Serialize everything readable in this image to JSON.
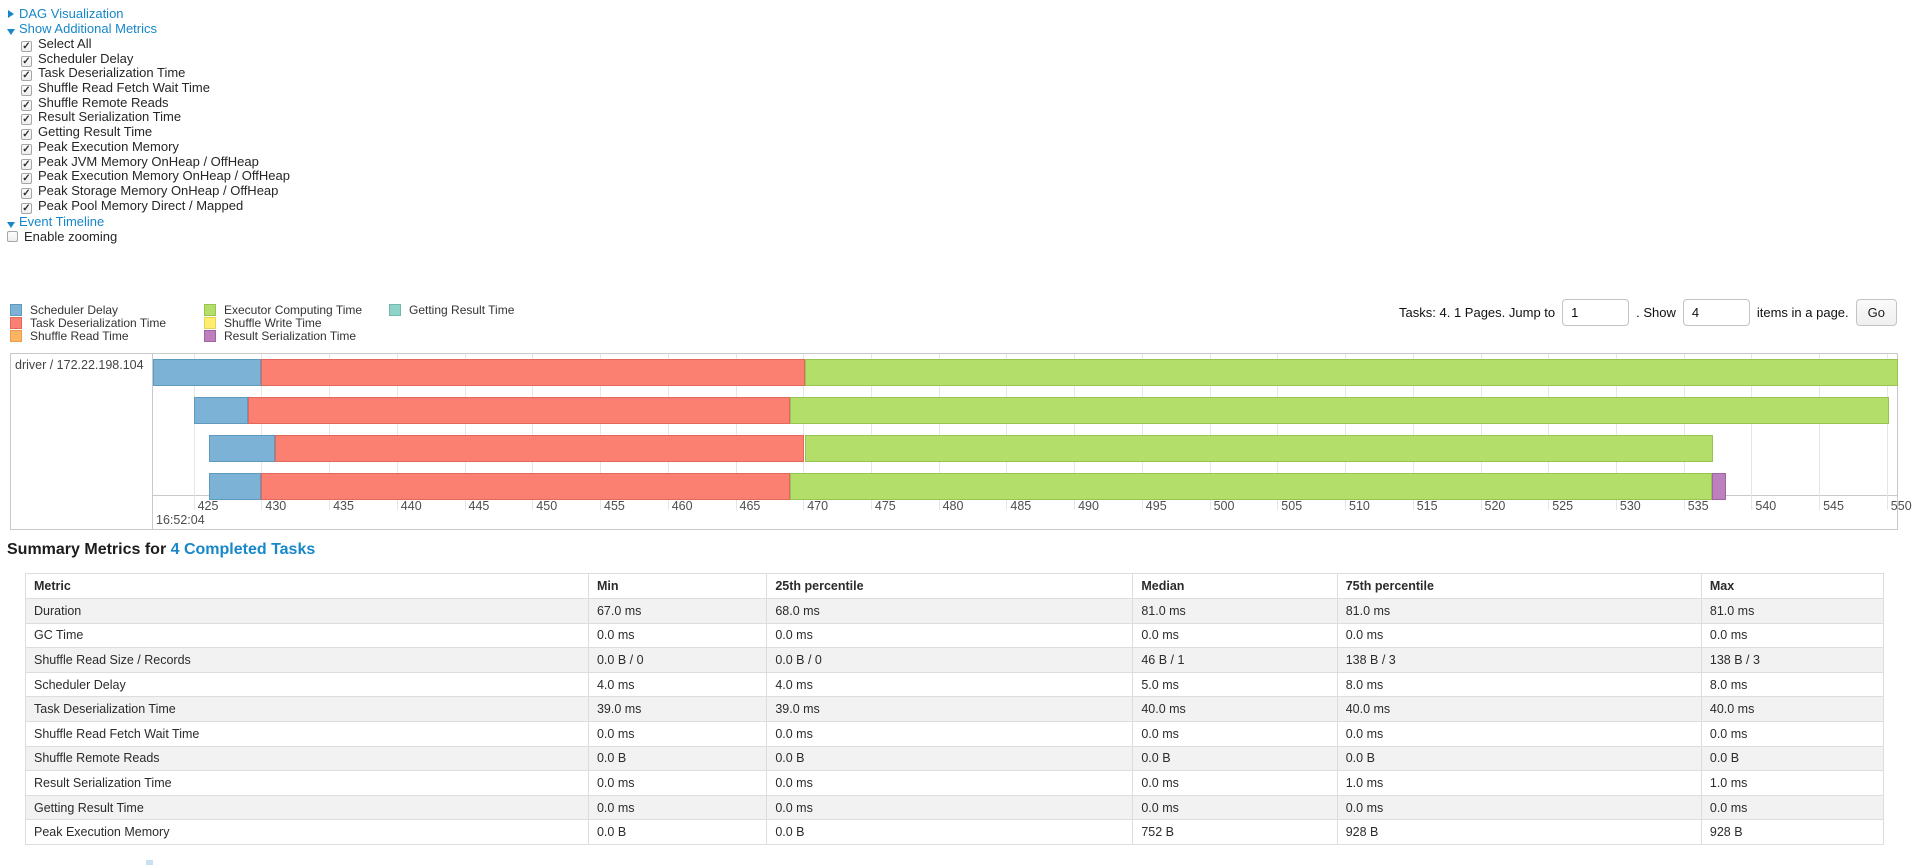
{
  "controls": {
    "dag_label": "DAG Visualization",
    "metrics_label": "Show Additional Metrics",
    "metric_checkboxes": [
      {
        "label": "Select All",
        "checked": true
      },
      {
        "label": "Scheduler Delay",
        "checked": true
      },
      {
        "label": "Task Deserialization Time",
        "checked": true
      },
      {
        "label": "Shuffle Read Fetch Wait Time",
        "checked": true
      },
      {
        "label": "Shuffle Remote Reads",
        "checked": true
      },
      {
        "label": "Result Serialization Time",
        "checked": true
      },
      {
        "label": "Getting Result Time",
        "checked": true
      },
      {
        "label": "Peak Execution Memory",
        "checked": true
      },
      {
        "label": "Peak JVM Memory OnHeap / OffHeap",
        "checked": true
      },
      {
        "label": "Peak Execution Memory OnHeap / OffHeap",
        "checked": true
      },
      {
        "label": "Peak Storage Memory OnHeap / OffHeap",
        "checked": true
      },
      {
        "label": "Peak Pool Memory Direct / Mapped",
        "checked": true
      }
    ],
    "timeline_label": "Event Timeline",
    "enable_zooming": {
      "label": "Enable zooming",
      "checked": false
    }
  },
  "pagination": {
    "prefix": "Tasks: 4. 1 Pages. Jump to",
    "jump_value": "1",
    "middle": ". Show",
    "show_value": "4",
    "suffix": "items in a page.",
    "go_label": "Go"
  },
  "chart_data": {
    "type": "timeline",
    "group_label": "driver / 172.22.198.104",
    "time_domain_ms": [
      422.0,
      550.75
    ],
    "axis_ticks_ms": [
      425,
      430,
      435,
      440,
      445,
      450,
      455,
      460,
      465,
      470,
      475,
      480,
      485,
      490,
      495,
      500,
      505,
      510,
      515,
      520,
      525,
      530,
      535,
      540,
      545,
      550
    ],
    "axis_major_label": "16:52:04",
    "series": [
      {
        "key": "scheduler_delay",
        "label": "Scheduler Delay",
        "fill": "#7CB2D6",
        "border": "#5E99C0"
      },
      {
        "key": "task_deserialization",
        "label": "Task Deserialization Time",
        "fill": "#FB8072",
        "border": "#E2685B"
      },
      {
        "key": "shuffle_read",
        "label": "Shuffle Read Time",
        "fill": "#FDB462",
        "border": "#E89C48"
      },
      {
        "key": "executor_computing",
        "label": "Executor Computing Time",
        "fill": "#B3DE69",
        "border": "#99C351"
      },
      {
        "key": "shuffle_write",
        "label": "Shuffle Write Time",
        "fill": "#FFED6F",
        "border": "#E5D257"
      },
      {
        "key": "result_serialization",
        "label": "Result Serialization Time",
        "fill": "#BC80BD",
        "border": "#A263A4"
      },
      {
        "key": "getting_result",
        "label": "Getting Result Time",
        "fill": "#8DD3C7",
        "border": "#72B8AB"
      }
    ],
    "legend_columns": [
      [
        "scheduler_delay",
        "task_deserialization",
        "shuffle_read"
      ],
      [
        "executor_computing",
        "shuffle_write",
        "result_serialization"
      ],
      [
        "getting_result"
      ]
    ],
    "tasks": [
      {
        "segments": [
          {
            "series": "scheduler_delay",
            "start": 422.0,
            "end": 430.0
          },
          {
            "series": "task_deserialization",
            "start": 430.0,
            "end": 470.1
          },
          {
            "series": "executor_computing",
            "start": 470.1,
            "end": 550.8
          }
        ]
      },
      {
        "segments": [
          {
            "series": "scheduler_delay",
            "start": 425.0,
            "end": 429.0
          },
          {
            "series": "task_deserialization",
            "start": 429.0,
            "end": 469.0
          },
          {
            "series": "executor_computing",
            "start": 469.0,
            "end": 550.2
          }
        ]
      },
      {
        "segments": [
          {
            "series": "scheduler_delay",
            "start": 426.1,
            "end": 431.0
          },
          {
            "series": "task_deserialization",
            "start": 431.0,
            "end": 470.1
          },
          {
            "series": "executor_computing",
            "start": 470.1,
            "end": 537.2
          }
        ]
      },
      {
        "segments": [
          {
            "series": "scheduler_delay",
            "start": 426.1,
            "end": 430.0
          },
          {
            "series": "task_deserialization",
            "start": 430.0,
            "end": 469.0
          },
          {
            "series": "executor_computing",
            "start": 469.0,
            "end": 537.1
          },
          {
            "series": "result_serialization",
            "start": 537.1,
            "end": 538.1
          }
        ]
      }
    ]
  },
  "summary": {
    "heading_prefix": "Summary Metrics for ",
    "heading_link": "4 Completed Tasks",
    "table": {
      "headers": [
        "Metric",
        "Min",
        "25th percentile",
        "Median",
        "75th percentile",
        "Max"
      ],
      "rows": [
        {
          "metric": "Duration",
          "values": [
            "67.0 ms",
            "68.0 ms",
            "81.0 ms",
            "81.0 ms",
            "81.0 ms"
          ]
        },
        {
          "metric": "GC Time",
          "values": [
            "0.0 ms",
            "0.0 ms",
            "0.0 ms",
            "0.0 ms",
            "0.0 ms"
          ]
        },
        {
          "metric": "Shuffle Read Size / Records",
          "values": [
            "0.0 B / 0",
            "0.0 B / 0",
            "46 B / 1",
            "138 B / 3",
            "138 B / 3"
          ]
        },
        {
          "metric": "Scheduler Delay",
          "values": [
            "4.0 ms",
            "4.0 ms",
            "5.0 ms",
            "8.0 ms",
            "8.0 ms"
          ]
        },
        {
          "metric": "Task Deserialization Time",
          "values": [
            "39.0 ms",
            "39.0 ms",
            "40.0 ms",
            "40.0 ms",
            "40.0 ms"
          ]
        },
        {
          "metric": "Shuffle Read Fetch Wait Time",
          "values": [
            "0.0 ms",
            "0.0 ms",
            "0.0 ms",
            "0.0 ms",
            "0.0 ms"
          ]
        },
        {
          "metric": "Shuffle Remote Reads",
          "values": [
            "0.0 B",
            "0.0 B",
            "0.0 B",
            "0.0 B",
            "0.0 B"
          ]
        },
        {
          "metric": "Result Serialization Time",
          "values": [
            "0.0 ms",
            "0.0 ms",
            "0.0 ms",
            "1.0 ms",
            "1.0 ms"
          ]
        },
        {
          "metric": "Getting Result Time",
          "values": [
            "0.0 ms",
            "0.0 ms",
            "0.0 ms",
            "0.0 ms",
            "0.0 ms"
          ]
        },
        {
          "metric": "Peak Execution Memory",
          "values": [
            "0.0 B",
            "0.0 B",
            "752 B",
            "928 B",
            "928 B"
          ]
        }
      ]
    }
  },
  "colors": {
    "link_blue": "#1787c9",
    "gridline": "#e6e6e6",
    "chart_border": "#c9c9c9",
    "table_border": "#dddddd",
    "alt_row_bg": "#f2f2f2"
  }
}
